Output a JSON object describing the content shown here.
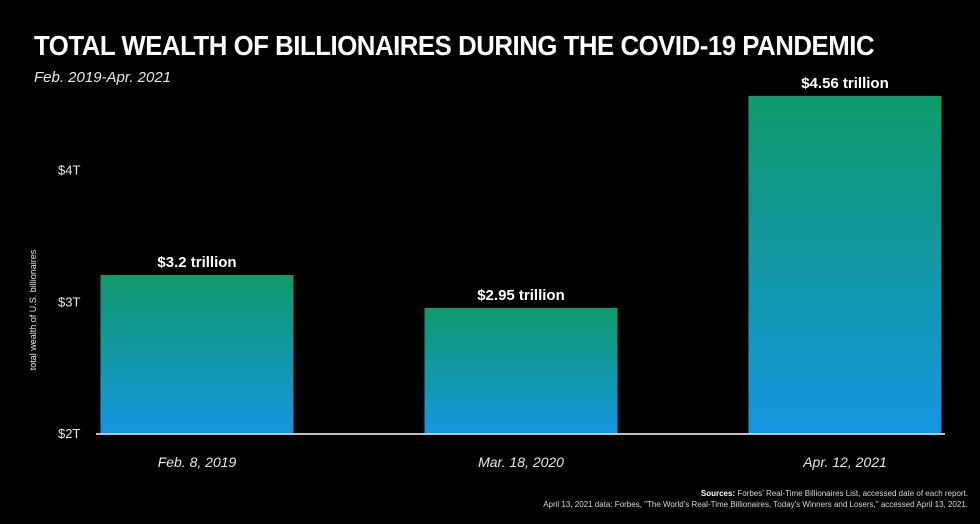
{
  "header": {
    "title": "TOTAL WEALTH OF BILLIONAIRES DURING THE COVID-19 PANDEMIC",
    "subtitle": "Feb. 2019-Apr. 2021"
  },
  "source": {
    "label": "Sources:",
    "line1": "Forbes' Real-Time Billionaires List, accessed date of each report.",
    "line2": "April 13, 2021 data: Forbes, \"The World's Real-Time Billionaires, Today's Winners and Losers,\" accessed April 13, 2021."
  },
  "colors": {
    "background": "#000000",
    "bar_top": "#0f9a6a",
    "bar_bottom": "#1596e0",
    "axis": "#ffffff",
    "text": "#ffffff"
  },
  "chart_data": {
    "type": "bar",
    "ylabel": "total wealth of U.S. billionaires",
    "categories": [
      "Feb. 8, 2019",
      "Mar. 18, 2020",
      "Apr. 12, 2021"
    ],
    "values": [
      3.2,
      2.95,
      4.56
    ],
    "data_labels": [
      "$3.2 trillion",
      "$2.95 trillion",
      "$4.56 trillion"
    ],
    "yticks": [
      {
        "value": 2,
        "label": "$2T"
      },
      {
        "value": 3,
        "label": "$3T"
      },
      {
        "value": 4,
        "label": "$4T"
      }
    ],
    "ylim": [
      2,
      4.65
    ],
    "grid": false,
    "legend": "none"
  }
}
